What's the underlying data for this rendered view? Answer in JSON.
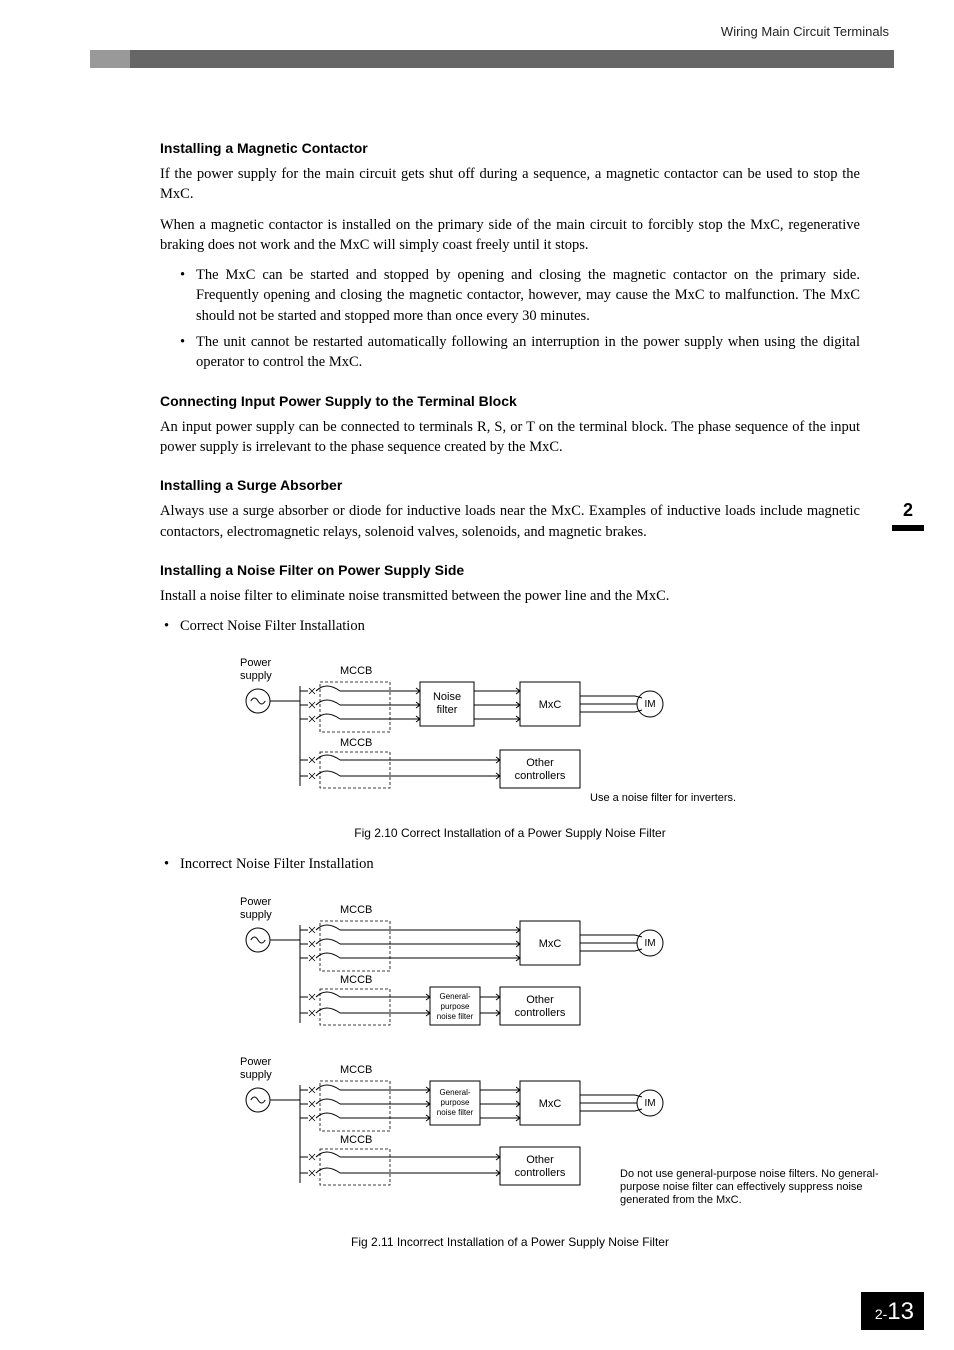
{
  "running_head": "Wiring Main Circuit Terminals",
  "side_tab": {
    "num": "2"
  },
  "page_number": {
    "prefix": "2-",
    "num": "13"
  },
  "sec1": {
    "title": "Installing a Magnetic Contactor",
    "p1": "If the power supply for the main circuit gets shut off during a sequence, a magnetic contactor can be used to stop the MxC.",
    "p2": "When a magnetic contactor is installed on the primary side of the main circuit to forcibly stop the MxC, regenerative braking does not work and the MxC will simply coast freely until it stops.",
    "b1": "The MxC can be started and stopped by opening and closing the magnetic contactor on the primary side. Frequently opening and closing the magnetic contactor, however, may cause the MxC to malfunction. The MxC should not be started and stopped more than once every 30 minutes.",
    "b2": "The unit cannot be restarted automatically following an interruption in the power supply when using the digital operator to control the MxC."
  },
  "sec2": {
    "title": "Connecting Input Power Supply to the Terminal Block",
    "p1": "An input power supply can be connected to terminals R, S, or T on the terminal block. The phase sequence of the input power supply is irrelevant to the phase sequence created by the MxC."
  },
  "sec3": {
    "title": "Installing a Surge Absorber",
    "p1": "Always use a surge absorber or diode for inductive loads near the MxC. Examples of inductive loads include magnetic contactors, electromagnetic relays, solenoid valves, solenoids, and magnetic brakes."
  },
  "sec4": {
    "title": "Installing a Noise Filter on Power Supply Side",
    "p1": "Install a noise filter to eliminate noise transmitted between the power line and the MxC.",
    "b1": "Correct Noise Filter Installation",
    "b2": "Incorrect Noise Filter Installation"
  },
  "fig1": {
    "caption": "Fig 2.10  Correct Installation of a Power Supply Noise Filter",
    "labels": {
      "power_supply": "Power\nsupply",
      "mccb1": "MCCB",
      "mccb2": "MCCB",
      "noise_filter": "Noise\nfilter",
      "mxc": "MxC",
      "im": "IM",
      "other": "Other\ncontrollers",
      "note": "Use a noise filter for inverters."
    },
    "colors": {
      "stroke": "#000000",
      "text": "#000000",
      "bg": "#ffffff"
    },
    "font": {
      "label_size": 11,
      "note_size": 11
    },
    "line_width": 1
  },
  "fig2": {
    "caption": "Fig 2.11  Incorrect Installation of a Power Supply Noise Filter",
    "labels": {
      "power_supply": "Power\nsupply",
      "mccb1": "MCCB",
      "mccb2": "MCCB",
      "gpnf": "General-\npurpose\nnoise filter",
      "mxc": "MxC",
      "im": "IM",
      "other": "Other\ncontrollers",
      "note": "Do not use general-purpose noise filters. No general-purpose noise filter can effectively suppress noise generated from the MxC."
    },
    "colors": {
      "stroke": "#000000",
      "text": "#000000",
      "bg": "#ffffff"
    },
    "font": {
      "label_size": 11,
      "note_size": 11,
      "gpnf_size": 8
    },
    "line_width": 1
  }
}
